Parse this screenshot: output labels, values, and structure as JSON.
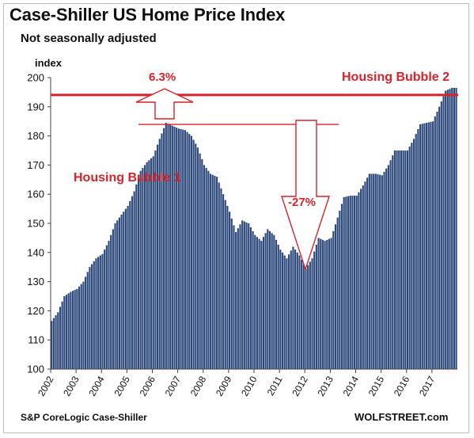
{
  "header": {
    "title": "Case-Shiller US Home Price Index",
    "subtitle": "Not seasonally adjusted",
    "y_unit": "index"
  },
  "footer": {
    "source": "S&P CoreLogic Case-Shiller",
    "brand": "WOLFSTREET.com"
  },
  "colors": {
    "bar": "#2e4a7d",
    "annotation": "#d8232a",
    "axis": "#444444"
  },
  "chart_data": {
    "type": "bar",
    "title": "Case-Shiller US Home Price Index",
    "subtitle": "Not seasonally adjusted",
    "ylabel": "index",
    "ylim": [
      100,
      200
    ],
    "yticks": [
      100,
      110,
      120,
      130,
      140,
      150,
      160,
      170,
      180,
      190,
      200
    ],
    "x_tick_labels": [
      "2002",
      "2003",
      "2004",
      "2005",
      "2006",
      "2007",
      "2008",
      "2009",
      "2010",
      "2011",
      "2012",
      "2013",
      "2014",
      "2015",
      "2016",
      "2017"
    ],
    "x_years": [
      2002,
      2003,
      2004,
      2005,
      2006,
      2007,
      2008,
      2009,
      2010,
      2011,
      2012,
      2013,
      2014,
      2015,
      2016,
      2017
    ],
    "frequency": "monthly",
    "x_start": "2002-01",
    "grid": false,
    "legend": "none",
    "keypoints": [
      [
        "2002-01",
        116.5
      ],
      [
        "2002-04",
        119.5
      ],
      [
        "2002-07",
        125.0
      ],
      [
        "2002-10",
        126.5
      ],
      [
        "2003-01",
        127.5
      ],
      [
        "2003-04",
        130.0
      ],
      [
        "2003-07",
        135.0
      ],
      [
        "2003-10",
        138.0
      ],
      [
        "2004-01",
        139.5
      ],
      [
        "2004-04",
        144.0
      ],
      [
        "2004-07",
        150.0
      ],
      [
        "2004-10",
        153.0
      ],
      [
        "2005-01",
        156.0
      ],
      [
        "2005-04",
        161.0
      ],
      [
        "2005-07",
        168.0
      ],
      [
        "2005-10",
        171.0
      ],
      [
        "2006-01",
        173.0
      ],
      [
        "2006-04",
        179.0
      ],
      [
        "2006-07",
        184.5
      ],
      [
        "2006-10",
        183.5
      ],
      [
        "2007-01",
        182.5
      ],
      [
        "2007-04",
        182.0
      ],
      [
        "2007-07",
        180.0
      ],
      [
        "2007-10",
        176.0
      ],
      [
        "2008-01",
        170.0
      ],
      [
        "2008-04",
        167.0
      ],
      [
        "2008-07",
        166.0
      ],
      [
        "2008-10",
        160.0
      ],
      [
        "2009-01",
        154.0
      ],
      [
        "2009-04",
        147.0
      ],
      [
        "2009-07",
        151.0
      ],
      [
        "2009-10",
        150.0
      ],
      [
        "2010-01",
        146.0
      ],
      [
        "2010-04",
        144.0
      ],
      [
        "2010-07",
        148.0
      ],
      [
        "2010-10",
        146.0
      ],
      [
        "2011-01",
        141.0
      ],
      [
        "2011-04",
        138.0
      ],
      [
        "2011-07",
        142.0
      ],
      [
        "2011-10",
        139.0
      ],
      [
        "2012-01",
        134.5
      ],
      [
        "2012-04",
        138.0
      ],
      [
        "2012-07",
        145.0
      ],
      [
        "2012-10",
        144.0
      ],
      [
        "2013-01",
        145.0
      ],
      [
        "2013-04",
        152.0
      ],
      [
        "2013-07",
        159.0
      ],
      [
        "2013-10",
        159.5
      ],
      [
        "2014-01",
        159.5
      ],
      [
        "2014-04",
        163.0
      ],
      [
        "2014-07",
        167.0
      ],
      [
        "2014-10",
        167.0
      ],
      [
        "2015-01",
        166.5
      ],
      [
        "2015-04",
        170.0
      ],
      [
        "2015-07",
        175.0
      ],
      [
        "2015-10",
        175.0
      ],
      [
        "2016-01",
        175.0
      ],
      [
        "2016-04",
        179.0
      ],
      [
        "2016-07",
        184.0
      ],
      [
        "2016-10",
        184.5
      ],
      [
        "2017-01",
        185.0
      ],
      [
        "2017-04",
        190.0
      ],
      [
        "2017-07",
        195.5
      ],
      [
        "2017-10",
        196.5
      ]
    ],
    "annotations": [
      {
        "text": "6.3%",
        "kind": "percent-gain"
      },
      {
        "text": "Housing Bubble 2",
        "kind": "label"
      },
      {
        "text": "Housing Bubble 1",
        "kind": "label"
      },
      {
        "text": "-27%",
        "kind": "percent-drop"
      }
    ],
    "reference_lines": [
      {
        "value": 196.5,
        "label": "Housing Bubble 2"
      },
      {
        "value": 184.5,
        "label": "Housing Bubble 1"
      }
    ]
  }
}
